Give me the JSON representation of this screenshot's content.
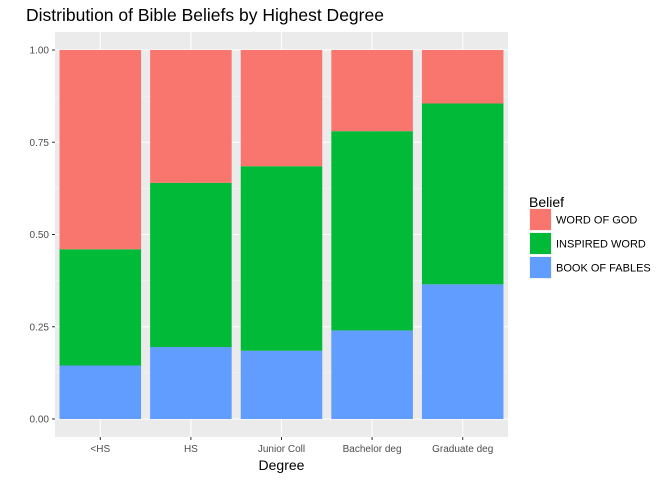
{
  "chart_data": {
    "type": "bar",
    "stacked": true,
    "title": "Distribution of Bible Beliefs by Highest Degree",
    "xlabel": "Degree",
    "ylabel": "",
    "ylim": [
      0,
      1
    ],
    "yticks": [
      "0.00",
      "0.25",
      "0.50",
      "0.75",
      "1.00"
    ],
    "grid": true,
    "legend_position": "right",
    "categories": [
      "<HS",
      "HS",
      "Junior Coll",
      "Bachelor deg",
      "Graduate deg"
    ],
    "legend_title": "Belief",
    "series": [
      {
        "name": "BOOK OF FABLES",
        "color": "#619CFF",
        "values": [
          0.145,
          0.195,
          0.185,
          0.24,
          0.365
        ]
      },
      {
        "name": "INSPIRED WORD",
        "color": "#00BA38",
        "values": [
          0.315,
          0.445,
          0.5,
          0.54,
          0.49
        ]
      },
      {
        "name": "WORD OF GOD",
        "color": "#F8766D",
        "values": [
          0.54,
          0.36,
          0.315,
          0.22,
          0.145
        ]
      }
    ],
    "legend_order": [
      "WORD OF GOD",
      "INSPIRED WORD",
      "BOOK OF FABLES"
    ]
  }
}
